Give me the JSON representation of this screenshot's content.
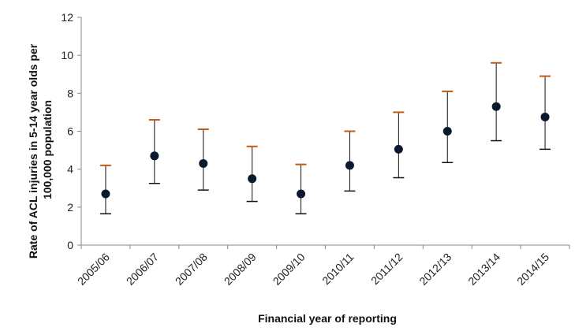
{
  "chart_data": {
    "type": "scatter",
    "title": "",
    "xlabel": "Financial year of reporting",
    "ylabel_lines": [
      "Rate of ACL injuries in 5-14 year olds per",
      "100,000 population"
    ],
    "categories": [
      "2005/06",
      "2006/07",
      "2007/08",
      "2008/09",
      "2009/10",
      "2010/11",
      "2011/12",
      "2012/13",
      "2013/14",
      "2014/15"
    ],
    "values": [
      2.7,
      4.7,
      4.3,
      3.5,
      2.7,
      4.2,
      5.05,
      6.0,
      7.3,
      6.75
    ],
    "lower": [
      1.65,
      3.25,
      2.9,
      2.3,
      1.65,
      2.85,
      3.55,
      4.35,
      5.5,
      5.05
    ],
    "upper": [
      4.2,
      6.6,
      6.1,
      5.2,
      4.25,
      6.0,
      7.0,
      8.1,
      9.6,
      8.9
    ],
    "ylim": [
      0,
      12
    ],
    "yticks": [
      0,
      2,
      4,
      6,
      8,
      10,
      12
    ],
    "grid": false,
    "colors": {
      "marker": "#0b1a2e",
      "whisker": "#111111",
      "upper_cap": "#c55a11",
      "axis": "#888888"
    }
  }
}
